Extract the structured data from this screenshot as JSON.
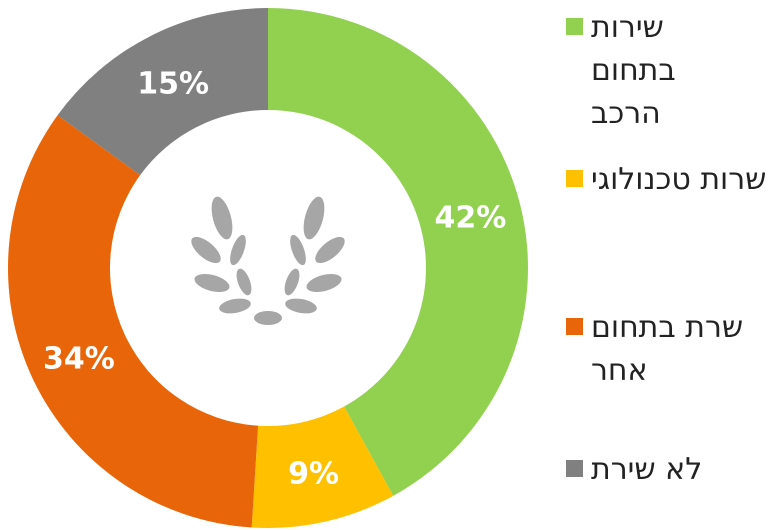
{
  "chart_data": {
    "type": "donut",
    "categories": [
      "שירות בתחום הרכב",
      "שרות טכנולוגי",
      "שרת בתחום אחר",
      "לא שירת"
    ],
    "values": [
      42,
      9,
      34,
      15
    ],
    "value_labels": [
      "42%",
      "9%",
      "34%",
      "15%"
    ],
    "colors": [
      "#92d050",
      "#ffc000",
      "#e8650a",
      "#808080"
    ],
    "legend": "right"
  }
}
